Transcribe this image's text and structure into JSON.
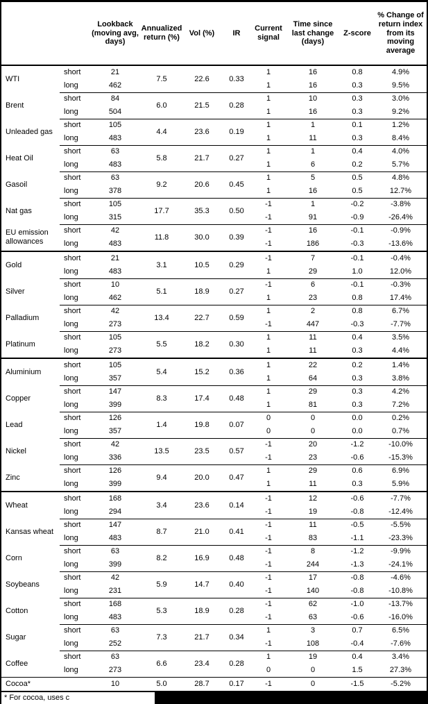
{
  "header": {
    "columns": [
      "Lookback (moving avg, days)",
      "Annualized return (%)",
      "Vol (%)",
      "IR",
      "Current signal",
      "Time since last change (days)",
      "Z-score",
      "% Change of return index from its moving average"
    ]
  },
  "table": {
    "leg_labels": {
      "short": "short",
      "long": "long"
    },
    "sections": [
      {
        "title": "energy",
        "rows": [
          {
            "name": "WTI",
            "merged": {
              "annualized": "7.5",
              "vol": "22.6",
              "ir": "0.33"
            },
            "short": {
              "lookback": "21",
              "signal": "1",
              "time": "16",
              "z": "0.8",
              "pct": "4.9%"
            },
            "long": {
              "lookback": "462",
              "signal": "1",
              "time": "16",
              "z": "0.3",
              "pct": "9.5%"
            }
          },
          {
            "name": "Brent",
            "merged": {
              "annualized": "6.0",
              "vol": "21.5",
              "ir": "0.28"
            },
            "short": {
              "lookback": "84",
              "signal": "1",
              "time": "10",
              "z": "0.3",
              "pct": "3.0%"
            },
            "long": {
              "lookback": "504",
              "signal": "1",
              "time": "16",
              "z": "0.3",
              "pct": "9.2%"
            }
          },
          {
            "name": "Unleaded gas",
            "merged": {
              "annualized": "4.4",
              "vol": "23.6",
              "ir": "0.19"
            },
            "short": {
              "lookback": "105",
              "signal": "1",
              "time": "1",
              "z": "0.1",
              "pct": "1.2%"
            },
            "long": {
              "lookback": "483",
              "signal": "1",
              "time": "11",
              "z": "0.3",
              "pct": "8.4%"
            }
          },
          {
            "name": "Heat Oil",
            "merged": {
              "annualized": "5.8",
              "vol": "21.7",
              "ir": "0.27"
            },
            "short": {
              "lookback": "63",
              "signal": "1",
              "time": "1",
              "z": "0.4",
              "pct": "4.0%"
            },
            "long": {
              "lookback": "483",
              "signal": "1",
              "time": "6",
              "z": "0.2",
              "pct": "5.7%"
            }
          },
          {
            "name": "Gasoil",
            "merged": {
              "annualized": "9.2",
              "vol": "20.6",
              "ir": "0.45"
            },
            "short": {
              "lookback": "63",
              "signal": "1",
              "time": "5",
              "z": "0.5",
              "pct": "4.8%"
            },
            "long": {
              "lookback": "378",
              "signal": "1",
              "time": "16",
              "z": "0.5",
              "pct": "12.7%"
            }
          },
          {
            "name": "Nat gas",
            "merged": {
              "annualized": "17.7",
              "vol": "35.3",
              "ir": "0.50"
            },
            "short": {
              "lookback": "105",
              "signal": "-1",
              "time": "1",
              "z": "-0.2",
              "pct": "-3.8%"
            },
            "long": {
              "lookback": "315",
              "signal": "-1",
              "time": "91",
              "z": "-0.9",
              "pct": "-26.4%"
            }
          },
          {
            "name": "EU emission allowances",
            "merged": {
              "annualized": "11.8",
              "vol": "30.0",
              "ir": "0.39"
            },
            "short": {
              "lookback": "42",
              "signal": "-1",
              "time": "16",
              "z": "-0.1",
              "pct": "-0.9%"
            },
            "long": {
              "lookback": "483",
              "signal": "-1",
              "time": "186",
              "z": "-0.3",
              "pct": "-13.6%"
            }
          }
        ]
      },
      {
        "title": "precious-metals",
        "rows": [
          {
            "name": "Gold",
            "merged": {
              "annualized": "3.1",
              "vol": "10.5",
              "ir": "0.29"
            },
            "short": {
              "lookback": "21",
              "signal": "-1",
              "time": "7",
              "z": "-0.1",
              "pct": "-0.4%"
            },
            "long": {
              "lookback": "483",
              "signal": "1",
              "time": "29",
              "z": "1.0",
              "pct": "12.0%"
            }
          },
          {
            "name": "Silver",
            "merged": {
              "annualized": "5.1",
              "vol": "18.9",
              "ir": "0.27"
            },
            "short": {
              "lookback": "10",
              "signal": "-1",
              "time": "6",
              "z": "-0.1",
              "pct": "-0.3%"
            },
            "long": {
              "lookback": "462",
              "signal": "1",
              "time": "23",
              "z": "0.8",
              "pct": "17.4%"
            }
          },
          {
            "name": "Palladium",
            "merged": {
              "annualized": "13.4",
              "vol": "22.7",
              "ir": "0.59"
            },
            "short": {
              "lookback": "42",
              "signal": "1",
              "time": "2",
              "z": "0.8",
              "pct": "6.7%"
            },
            "long": {
              "lookback": "273",
              "signal": "-1",
              "time": "447",
              "z": "-0.3",
              "pct": "-7.7%"
            }
          },
          {
            "name": "Platinum",
            "merged": {
              "annualized": "5.5",
              "vol": "18.2",
              "ir": "0.30"
            },
            "short": {
              "lookback": "105",
              "signal": "1",
              "time": "11",
              "z": "0.4",
              "pct": "3.5%"
            },
            "long": {
              "lookback": "273",
              "signal": "1",
              "time": "11",
              "z": "0.3",
              "pct": "4.4%"
            }
          }
        ]
      },
      {
        "title": "base-metals",
        "rows": [
          {
            "name": "Aluminium",
            "merged": {
              "annualized": "5.4",
              "vol": "15.2",
              "ir": "0.36"
            },
            "short": {
              "lookback": "105",
              "signal": "1",
              "time": "22",
              "z": "0.2",
              "pct": "1.4%"
            },
            "long": {
              "lookback": "357",
              "signal": "1",
              "time": "64",
              "z": "0.3",
              "pct": "3.8%"
            }
          },
          {
            "name": "Copper",
            "merged": {
              "annualized": "8.3",
              "vol": "17.4",
              "ir": "0.48"
            },
            "short": {
              "lookback": "147",
              "signal": "1",
              "time": "29",
              "z": "0.3",
              "pct": "4.2%"
            },
            "long": {
              "lookback": "399",
              "signal": "1",
              "time": "81",
              "z": "0.3",
              "pct": "7.2%"
            }
          },
          {
            "name": "Lead",
            "merged": {
              "annualized": "1.4",
              "vol": "19.8",
              "ir": "0.07"
            },
            "short": {
              "lookback": "126",
              "signal": "0",
              "time": "0",
              "z": "0.0",
              "pct": "0.2%"
            },
            "long": {
              "lookback": "357",
              "signal": "0",
              "time": "0",
              "z": "0.0",
              "pct": "0.7%"
            }
          },
          {
            "name": "Nickel",
            "merged": {
              "annualized": "13.5",
              "vol": "23.5",
              "ir": "0.57"
            },
            "short": {
              "lookback": "42",
              "signal": "-1",
              "time": "20",
              "z": "-1.2",
              "pct": "-10.0%"
            },
            "long": {
              "lookback": "336",
              "signal": "-1",
              "time": "23",
              "z": "-0.6",
              "pct": "-15.3%"
            }
          },
          {
            "name": "Zinc",
            "merged": {
              "annualized": "9.4",
              "vol": "20.0",
              "ir": "0.47"
            },
            "short": {
              "lookback": "126",
              "signal": "1",
              "time": "29",
              "z": "0.6",
              "pct": "6.9%"
            },
            "long": {
              "lookback": "399",
              "signal": "1",
              "time": "11",
              "z": "0.3",
              "pct": "5.9%"
            }
          }
        ]
      },
      {
        "title": "agriculture",
        "rows": [
          {
            "name": "Wheat",
            "merged": {
              "annualized": "3.4",
              "vol": "23.6",
              "ir": "0.14"
            },
            "short": {
              "lookback": "168",
              "signal": "-1",
              "time": "12",
              "z": "-0.6",
              "pct": "-7.7%"
            },
            "long": {
              "lookback": "294",
              "signal": "-1",
              "time": "19",
              "z": "-0.8",
              "pct": "-12.4%"
            }
          },
          {
            "name": "Kansas wheat",
            "merged": {
              "annualized": "8.7",
              "vol": "21.0",
              "ir": "0.41"
            },
            "short": {
              "lookback": "147",
              "signal": "-1",
              "time": "11",
              "z": "-0.5",
              "pct": "-5.5%"
            },
            "long": {
              "lookback": "483",
              "signal": "-1",
              "time": "83",
              "z": "-1.1",
              "pct": "-23.3%"
            }
          },
          {
            "name": "Corn",
            "merged": {
              "annualized": "8.2",
              "vol": "16.9",
              "ir": "0.48"
            },
            "short": {
              "lookback": "63",
              "signal": "-1",
              "time": "8",
              "z": "-1.2",
              "pct": "-9.9%"
            },
            "long": {
              "lookback": "399",
              "signal": "-1",
              "time": "244",
              "z": "-1.3",
              "pct": "-24.1%"
            }
          },
          {
            "name": "Soybeans",
            "merged": {
              "annualized": "5.9",
              "vol": "14.7",
              "ir": "0.40"
            },
            "short": {
              "lookback": "42",
              "signal": "-1",
              "time": "17",
              "z": "-0.8",
              "pct": "-4.6%"
            },
            "long": {
              "lookback": "231",
              "signal": "-1",
              "time": "140",
              "z": "-0.8",
              "pct": "-10.8%"
            }
          },
          {
            "name": "Cotton",
            "merged": {
              "annualized": "5.3",
              "vol": "18.9",
              "ir": "0.28"
            },
            "short": {
              "lookback": "168",
              "signal": "-1",
              "time": "62",
              "z": "-1.0",
              "pct": "-13.7%"
            },
            "long": {
              "lookback": "483",
              "signal": "-1",
              "time": "63",
              "z": "-0.6",
              "pct": "-16.0%"
            }
          },
          {
            "name": "Sugar",
            "merged": {
              "annualized": "7.3",
              "vol": "21.7",
              "ir": "0.34"
            },
            "short": {
              "lookback": "63",
              "signal": "1",
              "time": "3",
              "z": "0.7",
              "pct": "6.5%"
            },
            "long": {
              "lookback": "252",
              "signal": "-1",
              "time": "108",
              "z": "-0.4",
              "pct": "-7.6%"
            }
          },
          {
            "name": "Coffee",
            "merged": {
              "annualized": "6.6",
              "vol": "23.4",
              "ir": "0.28"
            },
            "short": {
              "lookback": "63",
              "signal": "1",
              "time": "19",
              "z": "0.4",
              "pct": "3.4%"
            },
            "long": {
              "lookback": "273",
              "signal": "0",
              "time": "0",
              "z": "1.5",
              "pct": "27.3%"
            }
          }
        ]
      }
    ],
    "cocoa": {
      "name": "Cocoa*",
      "lookback": "10",
      "annualized": "5.0",
      "vol": "28.7",
      "ir": "0.17",
      "signal": "-1",
      "time": "0",
      "z": "-1.5",
      "pct": "-5.2%"
    }
  },
  "footnote": {
    "text": "* For cocoa, uses c"
  }
}
